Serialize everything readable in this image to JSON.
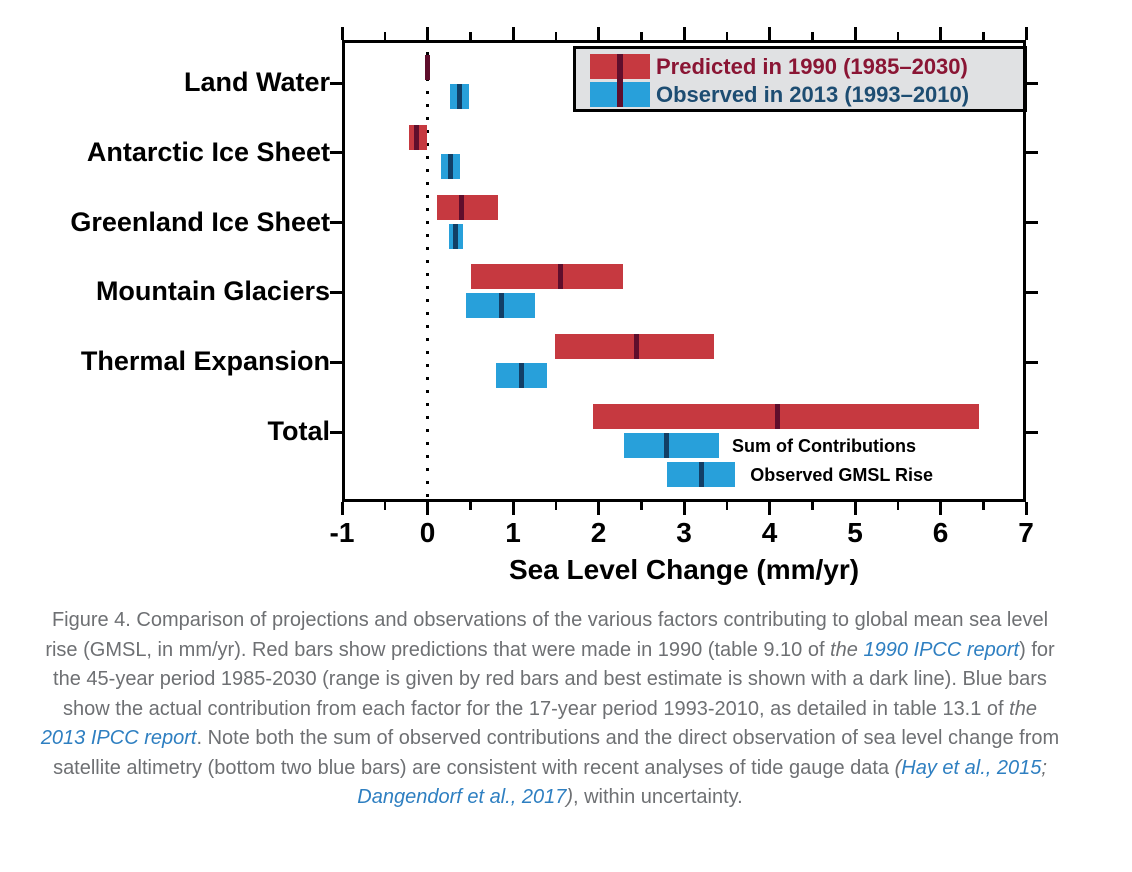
{
  "chart_data": {
    "type": "bar",
    "orientation": "horizontal-range-bars",
    "title": "",
    "xlabel": "Sea Level Change (mm/yr)",
    "ylabel": "",
    "xlim": [
      -1,
      7
    ],
    "x_tick_labels": [
      "-1",
      "0",
      "1",
      "2",
      "3",
      "4",
      "5",
      "6",
      "7"
    ],
    "x_minor_step": 0.5,
    "grid": "off",
    "zero_reference_line": 0,
    "legend_position": "top-right",
    "series_legend": [
      {
        "name": "Predicted in 1990 (1985–2030)",
        "bar_color": "#c63940",
        "best_line_color": "#5f0e2c",
        "text_color": "#8a1534"
      },
      {
        "name": "Observed in 2013 (1993–2010)",
        "bar_color": "#28a0da",
        "best_line_color": "#123f66",
        "text_color": "#1d4d72"
      }
    ],
    "rows": [
      {
        "category": "Land Water",
        "predicted": {
          "low": 0.0,
          "high": 0.0,
          "best": 0.0
        },
        "observed": {
          "low": 0.26,
          "high": 0.49,
          "best": 0.38
        }
      },
      {
        "category": "Antarctic Ice Sheet",
        "predicted": {
          "low": -0.22,
          "high": 0.0,
          "best": -0.13
        },
        "observed": {
          "low": 0.16,
          "high": 0.38,
          "best": 0.27
        }
      },
      {
        "category": "Greenland Ice Sheet",
        "predicted": {
          "low": 0.11,
          "high": 0.83,
          "best": 0.4
        },
        "observed": {
          "low": 0.25,
          "high": 0.41,
          "best": 0.33
        }
      },
      {
        "category": "Mountain Glaciers",
        "predicted": {
          "low": 0.51,
          "high": 2.29,
          "best": 1.56
        },
        "observed": {
          "low": 0.45,
          "high": 1.26,
          "best": 0.86
        }
      },
      {
        "category": "Thermal Expansion",
        "predicted": {
          "low": 1.49,
          "high": 3.35,
          "best": 2.45
        },
        "observed": {
          "low": 0.8,
          "high": 1.4,
          "best": 1.1
        }
      },
      {
        "category": "Total",
        "predicted": {
          "low": 1.93,
          "high": 6.45,
          "best": 4.09
        },
        "observed": {
          "low": 2.3,
          "high": 3.41,
          "best": 2.8,
          "label": "Sum of Contributions"
        },
        "observed2": {
          "low": 2.8,
          "high": 3.6,
          "best": 3.21,
          "label": "Observed GMSL Rise"
        }
      }
    ]
  },
  "caption": {
    "segments": [
      {
        "t": "Figure 4. Comparison of projections and observations of the various factors contributing to global mean sea level rise (GMSL, in mm/yr). Red bars show predictions that were made in 1990 (table 9.10 of ",
        "s": "n"
      },
      {
        "t": "the ",
        "s": "i"
      },
      {
        "t": "1990 IPCC report",
        "s": "l"
      },
      {
        "t": ") for the 45-year period 1985-2030 (range is given by red bars and best estimate is shown with a dark line). Blue bars show the actual contribution from each factor for the 17-year period 1993-2010, as detailed in table 13.1 of ",
        "s": "n"
      },
      {
        "t": "the ",
        "s": "i"
      },
      {
        "t": "2013 IPCC report",
        "s": "l"
      },
      {
        "t": ". Note both the sum of observed contributions and the direct observation of sea level change from satellite altimetry (bottom two blue bars) are consistent with recent analyses of tide gauge data ",
        "s": "n"
      },
      {
        "t": "(",
        "s": "i"
      },
      {
        "t": "Hay et al., 2015",
        "s": "l"
      },
      {
        "t": "; ",
        "s": "i"
      },
      {
        "t": "Dangendorf et al., 2017",
        "s": "l"
      },
      {
        "t": ")",
        "s": "i"
      },
      {
        "t": ", within uncertainty.",
        "s": "n"
      }
    ]
  }
}
